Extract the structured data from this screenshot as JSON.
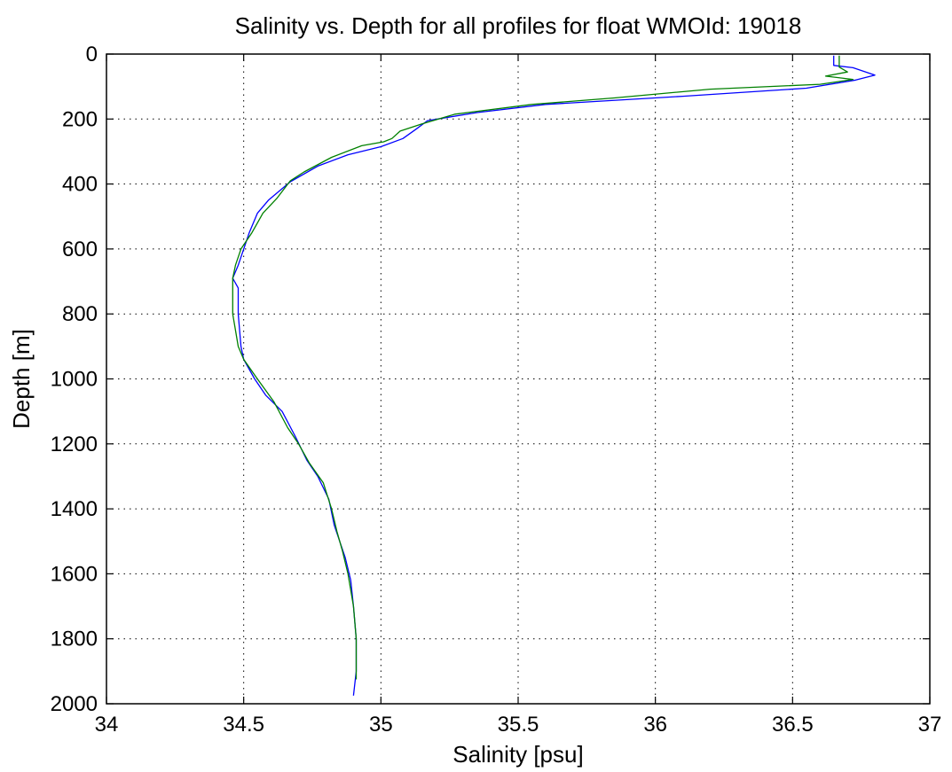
{
  "chart_data": {
    "type": "line",
    "title": "Salinity vs. Depth for all profiles for float WMOId: 19018",
    "xlabel": "Salinity [psu]",
    "ylabel": "Depth [m]",
    "xlim": [
      34,
      37
    ],
    "ylim": [
      0,
      2000
    ],
    "y_reversed": true,
    "grid": true,
    "x_ticks": [
      34,
      34.5,
      35,
      35.5,
      36,
      36.5,
      37
    ],
    "x_tick_labels": [
      "34",
      "34.5",
      "35",
      "35.5",
      "36",
      "36.5",
      "37"
    ],
    "y_ticks": [
      0,
      200,
      400,
      600,
      800,
      1000,
      1200,
      1400,
      1600,
      1800,
      2000
    ],
    "y_tick_labels": [
      "0",
      "200",
      "400",
      "600",
      "800",
      "1000",
      "1200",
      "1400",
      "1600",
      "1800",
      "2000"
    ],
    "series": [
      {
        "color": "#0000ff",
        "points": [
          [
            36.65,
            5
          ],
          [
            36.65,
            35
          ],
          [
            36.72,
            42
          ],
          [
            36.8,
            65
          ],
          [
            36.73,
            80
          ],
          [
            36.55,
            105
          ],
          [
            36.1,
            130
          ],
          [
            35.6,
            155
          ],
          [
            35.35,
            180
          ],
          [
            35.17,
            205
          ],
          [
            35.13,
            230
          ],
          [
            35.08,
            260
          ],
          [
            35.0,
            285
          ],
          [
            34.88,
            310
          ],
          [
            34.77,
            345
          ],
          [
            34.67,
            393
          ],
          [
            34.59,
            450
          ],
          [
            34.55,
            490
          ],
          [
            34.52,
            550
          ],
          [
            34.5,
            600
          ],
          [
            34.48,
            650
          ],
          [
            34.46,
            690
          ],
          [
            34.48,
            720
          ],
          [
            34.48,
            800
          ],
          [
            34.49,
            900
          ],
          [
            34.5,
            940
          ],
          [
            34.54,
            1000
          ],
          [
            34.58,
            1050
          ],
          [
            34.64,
            1100
          ],
          [
            34.69,
            1180
          ],
          [
            34.73,
            1250
          ],
          [
            34.77,
            1300
          ],
          [
            34.81,
            1370
          ],
          [
            34.83,
            1450
          ],
          [
            34.85,
            1500
          ],
          [
            34.87,
            1550
          ],
          [
            34.89,
            1620
          ],
          [
            34.9,
            1700
          ],
          [
            34.91,
            1800
          ],
          [
            34.91,
            1900
          ],
          [
            34.9,
            1975
          ]
        ]
      },
      {
        "color": "#008000",
        "points": [
          [
            36.67,
            5
          ],
          [
            36.67,
            40
          ],
          [
            36.7,
            55
          ],
          [
            36.62,
            68
          ],
          [
            36.72,
            78
          ],
          [
            36.6,
            93
          ],
          [
            36.2,
            108
          ],
          [
            35.85,
            135
          ],
          [
            35.55,
            155
          ],
          [
            35.27,
            185
          ],
          [
            35.15,
            215
          ],
          [
            35.07,
            237
          ],
          [
            35.04,
            260
          ],
          [
            35.01,
            270
          ],
          [
            34.93,
            282
          ],
          [
            34.82,
            318
          ],
          [
            34.72,
            363
          ],
          [
            34.67,
            390
          ],
          [
            34.62,
            445
          ],
          [
            34.57,
            490
          ],
          [
            34.53,
            550
          ],
          [
            34.49,
            600
          ],
          [
            34.47,
            650
          ],
          [
            34.46,
            690
          ],
          [
            34.46,
            750
          ],
          [
            34.46,
            800
          ],
          [
            34.47,
            850
          ],
          [
            34.48,
            900
          ],
          [
            34.5,
            940
          ],
          [
            34.55,
            1000
          ],
          [
            34.61,
            1070
          ],
          [
            34.66,
            1150
          ],
          [
            34.7,
            1200
          ],
          [
            34.74,
            1260
          ],
          [
            34.79,
            1320
          ],
          [
            34.82,
            1400
          ],
          [
            34.84,
            1470
          ],
          [
            34.86,
            1530
          ],
          [
            34.88,
            1600
          ],
          [
            34.9,
            1700
          ],
          [
            34.91,
            1800
          ],
          [
            34.91,
            1925
          ]
        ]
      }
    ]
  }
}
